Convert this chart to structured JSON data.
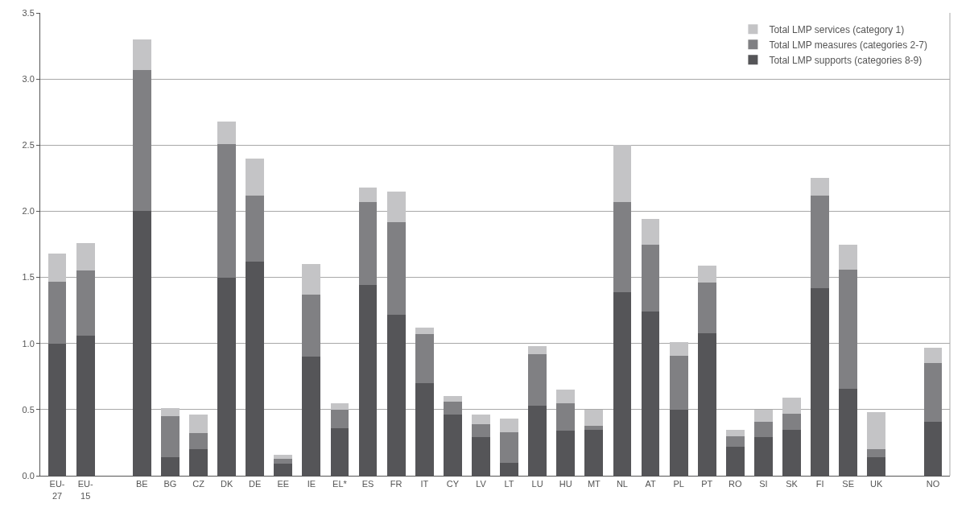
{
  "chart_data": {
    "type": "bar",
    "stacked": true,
    "categories": [
      "EU-27",
      "EU-15",
      null,
      "BE",
      "BG",
      "CZ",
      "DK",
      "DE",
      "EE",
      "IE",
      "EL*",
      "ES",
      "FR",
      "IT",
      "CY",
      "LV",
      "LT",
      "LU",
      "HU",
      "MT",
      "NL",
      "AT",
      "PL",
      "PT",
      "RO",
      "SI",
      "SK",
      "FI",
      "SE",
      "UK",
      null,
      "NO"
    ],
    "series": [
      {
        "name": "Total LMP supports (categories 8-9)",
        "color": "#555558",
        "values": [
          1.0,
          1.06,
          null,
          2.0,
          0.14,
          0.2,
          1.5,
          1.62,
          0.09,
          0.9,
          0.36,
          1.44,
          1.22,
          0.7,
          0.46,
          0.29,
          0.1,
          0.53,
          0.34,
          0.35,
          1.39,
          1.24,
          0.5,
          1.08,
          0.22,
          0.29,
          0.35,
          1.42,
          0.66,
          0.14,
          null,
          0.41
        ]
      },
      {
        "name": "Total LMP measures (categories 2-7)",
        "color": "#808083",
        "values": [
          0.47,
          0.49,
          null,
          1.07,
          0.31,
          0.12,
          1.01,
          0.5,
          0.04,
          0.47,
          0.14,
          0.63,
          0.7,
          0.37,
          0.1,
          0.1,
          0.23,
          0.39,
          0.21,
          0.03,
          0.68,
          0.51,
          0.41,
          0.38,
          0.08,
          0.12,
          0.12,
          0.7,
          0.9,
          0.06,
          null,
          0.44
        ]
      },
      {
        "name": "Total LMP services (category 1)",
        "color": "#c4c4c6",
        "values": [
          0.21,
          0.21,
          null,
          0.23,
          0.06,
          0.14,
          0.17,
          0.28,
          0.03,
          0.23,
          0.05,
          0.11,
          0.23,
          0.05,
          0.04,
          0.07,
          0.1,
          0.06,
          0.1,
          0.12,
          0.43,
          0.19,
          0.1,
          0.13,
          0.05,
          0.09,
          0.12,
          0.13,
          0.19,
          0.28,
          null,
          0.12
        ]
      }
    ],
    "ylim": [
      0,
      3.5
    ],
    "yticks": [
      {
        "value": 0,
        "label": "0.0"
      },
      {
        "value": 0.5,
        "label": "0.5"
      },
      {
        "value": 1,
        "label": "1.0"
      },
      {
        "value": 1.5,
        "label": "1.5"
      },
      {
        "value": 2,
        "label": "2.0"
      },
      {
        "value": 2.5,
        "label": "2.5"
      },
      {
        "value": 3,
        "label": "3.0"
      },
      {
        "value": 3.5,
        "label": "3.5"
      }
    ],
    "grid": "y",
    "legend": "top right"
  }
}
